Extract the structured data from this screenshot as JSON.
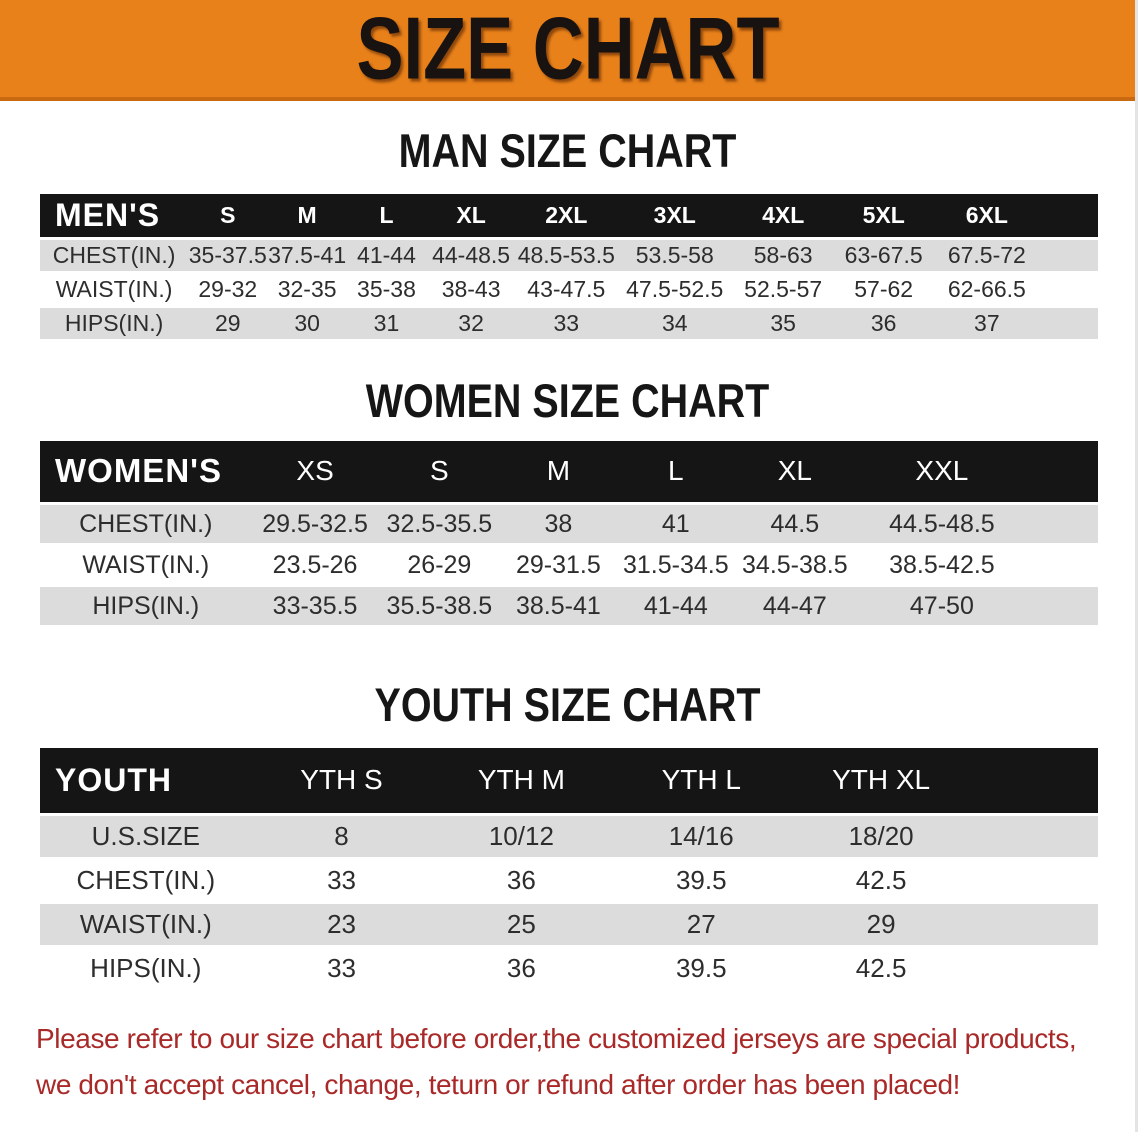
{
  "banner": {
    "title": "SIZE CHART"
  },
  "men": {
    "heading": "MAN SIZE CHART",
    "corner_label": "MEN'S",
    "sizes": [
      "S",
      "M",
      "L",
      "XL",
      "2XL",
      "3XL",
      "4XL",
      "5XL",
      "6XL"
    ],
    "rows": [
      {
        "label": "CHEST(IN.)",
        "values": [
          "35-37.5",
          "37.5-41",
          "41-44",
          "44-48.5",
          "48.5-53.5",
          "53.5-58",
          "58-63",
          "63-67.5",
          "67.5-72"
        ]
      },
      {
        "label": "WAIST(IN.)",
        "values": [
          "29-32",
          "32-35",
          "35-38",
          "38-43",
          "43-47.5",
          "47.5-52.5",
          "52.5-57",
          "57-62",
          "62-66.5"
        ]
      },
      {
        "label": "HIPS(IN.)",
        "values": [
          "29",
          "30",
          "31",
          "32",
          "33",
          "34",
          "35",
          "36",
          "37"
        ]
      }
    ]
  },
  "women": {
    "heading": "WOMEN SIZE CHART",
    "corner_label": "WOMEN'S",
    "sizes": [
      "XS",
      "S",
      "M",
      "L",
      "XL",
      "XXL"
    ],
    "rows": [
      {
        "label": "CHEST(IN.)",
        "values": [
          "29.5-32.5",
          "32.5-35.5",
          "38",
          "41",
          "44.5",
          "44.5-48.5"
        ]
      },
      {
        "label": "WAIST(IN.)",
        "values": [
          "23.5-26",
          "26-29",
          "29-31.5",
          "31.5-34.5",
          "34.5-38.5",
          "38.5-42.5"
        ]
      },
      {
        "label": "HIPS(IN.)",
        "values": [
          "33-35.5",
          "35.5-38.5",
          "38.5-41",
          "41-44",
          "44-47",
          "47-50"
        ]
      }
    ]
  },
  "youth": {
    "heading": "YOUTH SIZE CHART",
    "corner_label": "YOUTH",
    "sizes": [
      "YTH S",
      "YTH M",
      "YTH L",
      "YTH XL"
    ],
    "rows": [
      {
        "label": "U.S.SIZE",
        "values": [
          "8",
          "10/12",
          "14/16",
          "18/20"
        ]
      },
      {
        "label": "CHEST(IN.)",
        "values": [
          "33",
          "36",
          "39.5",
          "42.5"
        ]
      },
      {
        "label": "WAIST(IN.)",
        "values": [
          "23",
          "25",
          "27",
          "29"
        ]
      },
      {
        "label": "HIPS(IN.)",
        "values": [
          "33",
          "36",
          "39.5",
          "42.5"
        ]
      }
    ]
  },
  "notice": {
    "lines": [
      "Please refer to our size chart before order,the customized jerseys are special products,",
      "we don't accept cancel, change, teturn or refund after order has been placed!"
    ]
  },
  "colors": {
    "banner_bg": "#e8811a",
    "banner_edge": "#c96a10",
    "header_bar": "#151515",
    "row_stripe": "#dcdcdc",
    "notice_text": "#a92929"
  }
}
